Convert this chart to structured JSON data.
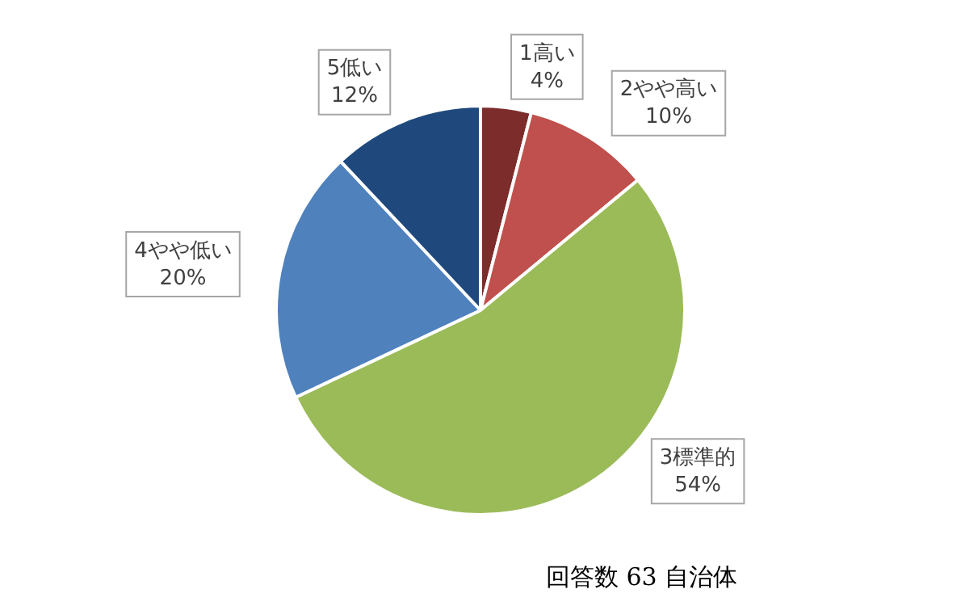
{
  "chart_data": {
    "type": "pie",
    "categories": [
      "1高い",
      "2やや高い",
      "3標準的",
      "4やや低い",
      "5低い"
    ],
    "values": [
      4,
      10,
      54,
      20,
      12
    ],
    "value_labels": [
      "4%",
      "10%",
      "54%",
      "20%",
      "12%"
    ],
    "colors": [
      "#7b2c2b",
      "#c0504d",
      "#9bbb59",
      "#4f81bd",
      "#1f497d"
    ],
    "annotations": [
      "回答数 63 自治体"
    ],
    "legend": false
  }
}
